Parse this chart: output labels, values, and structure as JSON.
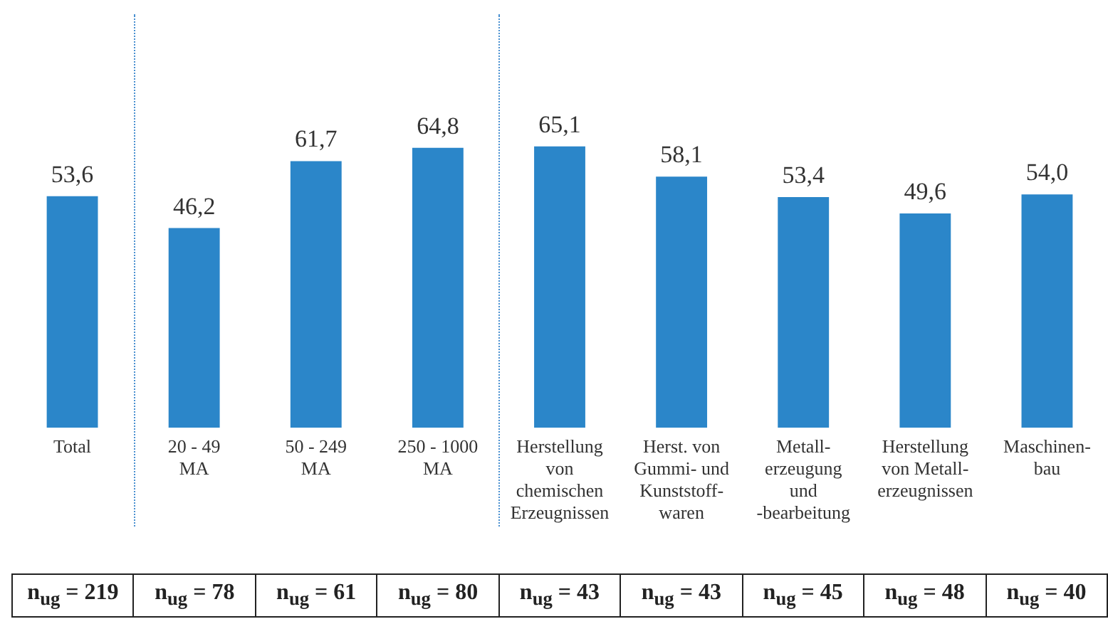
{
  "chart_data": {
    "type": "bar",
    "categories": [
      "Total",
      "20 - 49\nMA",
      "50 - 249\nMA",
      "250 - 1000\nMA",
      "Herstellung\nvon\nchemischen\nErzeugnissen",
      "Herst. von\nGummi- und\nKunststoff-\nwaren",
      "Metall-\nerzeugung\nund\n-bearbeitung",
      "Herstellung\nvon Metall-\nerzeugnissen",
      "Maschinen-\nbau"
    ],
    "values": [
      53.6,
      46.2,
      61.7,
      64.8,
      65.1,
      58.1,
      53.4,
      49.6,
      54.0
    ],
    "value_labels": [
      "53,6",
      "46,2",
      "61,7",
      "64,8",
      "65,1",
      "58,1",
      "53,4",
      "49,6",
      "54,0"
    ],
    "color": "#2b86c9",
    "grid": false,
    "legend": false,
    "annotations": [
      "n$_{ug}$ = 219",
      "n$_{ug}$ = 78",
      "n$_{ug}$ = 61",
      "n$_{ug}$ = 80",
      "n$_{ug}$ = 43",
      "n$_{ug}$ = 43",
      "n$_{ug}$ = 45",
      "n$_{ug}$ = 48",
      "n$_{ug}$ = 40"
    ]
  }
}
